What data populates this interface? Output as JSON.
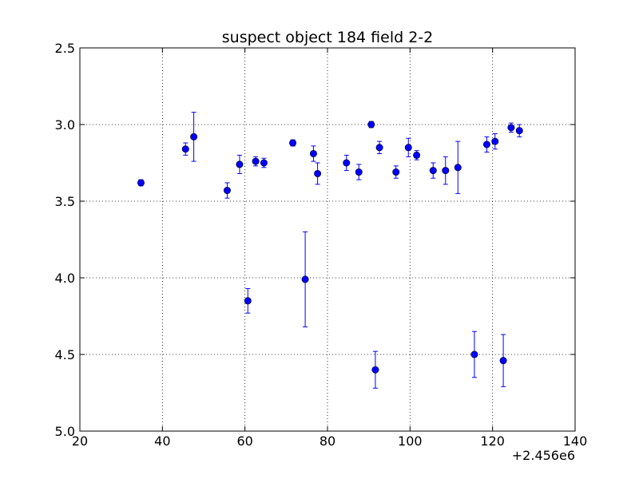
{
  "chart_data": {
    "type": "scatter",
    "title": "suspect object 184 field 2-2",
    "xlabel": "",
    "ylabel": "",
    "x_offset_label": "+2.456e6",
    "xlim": [
      20,
      140
    ],
    "ylim": [
      5.0,
      2.5
    ],
    "y_inverted": true,
    "grid": true,
    "x_ticks": [
      20,
      40,
      60,
      80,
      100,
      120,
      140
    ],
    "x_tick_labels": [
      "20",
      "40",
      "60",
      "80",
      "100",
      "120",
      "140"
    ],
    "y_ticks": [
      2.5,
      3.0,
      3.5,
      4.0,
      4.5,
      5.0
    ],
    "y_tick_labels": [
      "2.5",
      "3.0",
      "3.5",
      "4.0",
      "4.5",
      "5.0"
    ],
    "marker_color": "#0000ff",
    "series": [
      {
        "points": [
          {
            "x": 34.8,
            "y": 3.38,
            "err": 0.02
          },
          {
            "x": 45.6,
            "y": 3.16,
            "err": 0.04
          },
          {
            "x": 47.6,
            "y": 3.08,
            "err": 0.16
          },
          {
            "x": 55.7,
            "y": 3.43,
            "err": 0.05
          },
          {
            "x": 58.7,
            "y": 3.26,
            "err": 0.06
          },
          {
            "x": 60.7,
            "y": 4.15,
            "err": 0.08
          },
          {
            "x": 62.6,
            "y": 3.24,
            "err": 0.03
          },
          {
            "x": 64.6,
            "y": 3.25,
            "err": 0.03
          },
          {
            "x": 71.6,
            "y": 3.12,
            "err": 0.02
          },
          {
            "x": 74.6,
            "y": 4.01,
            "err": 0.31
          },
          {
            "x": 76.6,
            "y": 3.19,
            "err": 0.05
          },
          {
            "x": 77.6,
            "y": 3.32,
            "err": 0.07
          },
          {
            "x": 84.6,
            "y": 3.25,
            "err": 0.05
          },
          {
            "x": 87.6,
            "y": 3.31,
            "err": 0.05
          },
          {
            "x": 90.6,
            "y": 3.0,
            "err": 0.02
          },
          {
            "x": 91.6,
            "y": 4.6,
            "err": 0.12
          },
          {
            "x": 92.6,
            "y": 3.15,
            "err": 0.04
          },
          {
            "x": 96.6,
            "y": 3.31,
            "err": 0.04
          },
          {
            "x": 99.6,
            "y": 3.15,
            "err": 0.06
          },
          {
            "x": 101.6,
            "y": 3.2,
            "err": 0.03
          },
          {
            "x": 105.6,
            "y": 3.3,
            "err": 0.05
          },
          {
            "x": 108.6,
            "y": 3.3,
            "err": 0.09
          },
          {
            "x": 111.6,
            "y": 3.28,
            "err": 0.17
          },
          {
            "x": 115.6,
            "y": 4.5,
            "err": 0.15
          },
          {
            "x": 118.6,
            "y": 3.13,
            "err": 0.05
          },
          {
            "x": 120.6,
            "y": 3.11,
            "err": 0.05
          },
          {
            "x": 122.6,
            "y": 4.54,
            "err": 0.17
          },
          {
            "x": 124.5,
            "y": 3.02,
            "err": 0.03
          },
          {
            "x": 126.5,
            "y": 3.04,
            "err": 0.04
          }
        ]
      }
    ]
  }
}
